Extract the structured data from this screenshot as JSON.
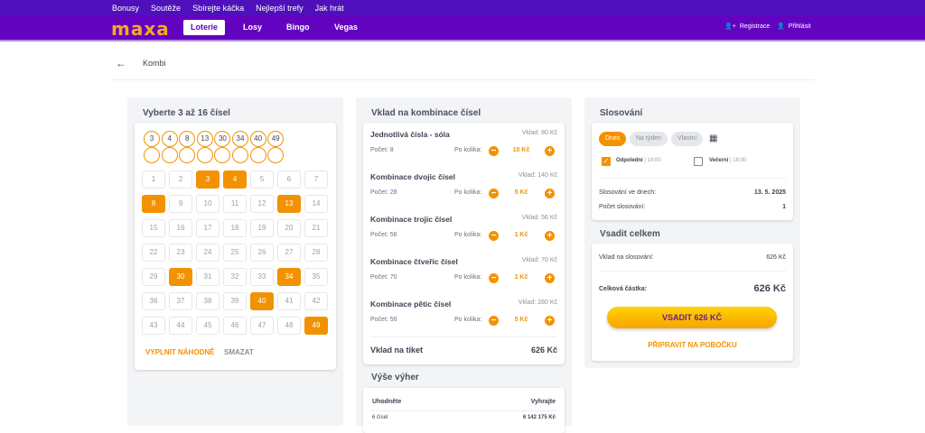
{
  "topbar": {
    "items": [
      "Bonusy",
      "Soutěže",
      "Sbírejte káčka",
      "Nejlepší trefy",
      "Jak hrát"
    ]
  },
  "nav": {
    "logo": "maxa",
    "items": [
      "Loterie",
      "Losy",
      "Bingo",
      "Vegas"
    ],
    "active": "Loterie",
    "register": "Registrace",
    "login": "Přihlásit"
  },
  "breadcrumb": {
    "title": "Kombi"
  },
  "picker": {
    "title": "Vyberte 3 až 16 čísel",
    "selected": [
      "3",
      "4",
      "8",
      "13",
      "30",
      "34",
      "40",
      "49"
    ],
    "slots": 16,
    "max": 49,
    "fill_random": "VYPLNIT NÁHODNĚ",
    "clear": "SMAZAT"
  },
  "stakes": {
    "title": "Vklad na kombinace čísel",
    "per_label": "Po kolika:",
    "rows": [
      {
        "name": "Jednotlivá čísla - sóla",
        "count": "Počet: 8",
        "stake": "Vklad: 80 Kč",
        "amount": "10 Kč"
      },
      {
        "name": "Kombinace dvojic čísel",
        "count": "Počet: 28",
        "stake": "Vklad: 140 Kč",
        "amount": "5 Kč"
      },
      {
        "name": "Kombinace trojic čísel",
        "count": "Počet: 56",
        "stake": "Vklad: 56 Kč",
        "amount": "1 Kč"
      },
      {
        "name": "Kombinace čtveřic čísel",
        "count": "Počet: 70",
        "stake": "Vklad: 70 Kč",
        "amount": "1 Kč"
      },
      {
        "name": "Kombinace pětic čísel",
        "count": "Počet: 56",
        "stake": "Vklad: 280 Kč",
        "amount": "5 Kč"
      }
    ],
    "ticket_label": "Vklad na tiket",
    "ticket_value": "626 Kč"
  },
  "wins": {
    "title": "Výše výher",
    "col1": "Uhodněte",
    "col2": "Vyhrajte",
    "rows": [
      {
        "guess": "6 čísel",
        "win": "6 142 175 Kč"
      }
    ]
  },
  "draw": {
    "title": "Slosování",
    "pills": [
      "Dnes",
      "Na týden",
      "Vlastní"
    ],
    "active": "Dnes",
    "options": [
      {
        "label": "Odpolední",
        "time": "| 14:00",
        "checked": true
      },
      {
        "label": "Večerní",
        "time": "| 18:00",
        "checked": false
      }
    ],
    "days_label": "Slosování ve dnech:",
    "days_value": "13. 5. 2025",
    "count_label": "Počet slosování:",
    "count_value": "1"
  },
  "total": {
    "title": "Vsadit celkem",
    "per_draw_label": "Vklad na slosování:",
    "per_draw_value": "626 Kč",
    "total_label": "Celková částka:",
    "total_value": "626 Kč",
    "bet_button": "VSADIT 626 KČ",
    "branch_button": "PŘIPRAVIT NA POBOČKU"
  },
  "colors": {
    "topbar": "#4f10bb",
    "nav": "#6203bf",
    "accent": "#f39200",
    "logo": "#f7a823",
    "bet_text": "#6a1b9a"
  }
}
